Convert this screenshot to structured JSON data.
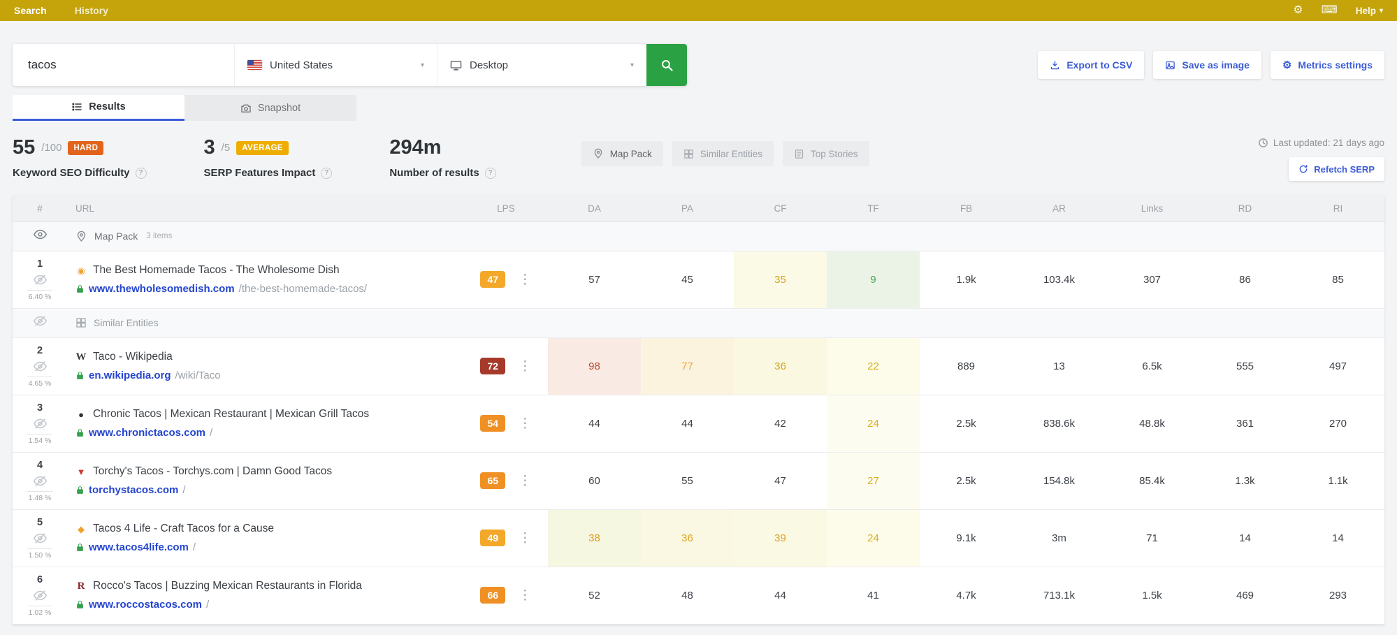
{
  "topbar": {
    "nav": [
      {
        "label": "Search",
        "active": true
      },
      {
        "label": "History",
        "active": false
      }
    ],
    "help_label": "Help"
  },
  "search_bar": {
    "keyword_value": "tacos",
    "location_value": "United States",
    "device_value": "Desktop"
  },
  "header_actions": [
    {
      "label": "Export to CSV",
      "icon": "download-icon"
    },
    {
      "label": "Save as image",
      "icon": "image-icon"
    },
    {
      "label": "Metrics settings",
      "icon": "gear-icon"
    }
  ],
  "tabs": [
    {
      "label": "Results",
      "icon": "list-icon",
      "active": true
    },
    {
      "label": "Snapshot",
      "icon": "camera-icon",
      "active": false
    }
  ],
  "stats": {
    "difficulty": {
      "value": "55",
      "suffix": "/100",
      "badge": "HARD",
      "badge_color": "#e2641b",
      "label": "Keyword SEO Difficulty"
    },
    "serp_impact": {
      "value": "3",
      "suffix": "/5",
      "badge": "AVERAGE",
      "badge_color": "#eead00",
      "label": "SERP Features Impact"
    },
    "results_count": {
      "value": "294m",
      "label": "Number of results"
    }
  },
  "serp_feature_buttons": [
    {
      "label": "Map Pack",
      "icon": "map-pin-icon",
      "muted": false
    },
    {
      "label": "Similar Entities",
      "icon": "grid-icon",
      "muted": true
    },
    {
      "label": "Top Stories",
      "icon": "article-icon",
      "muted": true
    }
  ],
  "refresh_info": {
    "last_updated": "Last updated: 21 days ago",
    "refetch_label": "Refetch SERP"
  },
  "table": {
    "columns": [
      "#",
      "URL",
      "LPS",
      "DA",
      "PA",
      "CF",
      "TF",
      "FB",
      "AR",
      "Links",
      "RD",
      "RI"
    ],
    "rows": [
      {
        "type": "feature",
        "label": "Map Pack",
        "meta": "3 items",
        "icon": "map-pin-icon",
        "visible": true
      },
      {
        "type": "result",
        "rank": "1",
        "ctr": "6.40 %",
        "favicon": {
          "glyph": "◉",
          "color": "#f0a330",
          "serif": false
        },
        "title": "The Best Homemade Tacos - The Wholesome Dish",
        "domain": "www.thewholesomedish.com",
        "path": "/the-best-homemade-tacos/",
        "lps": {
          "v": "47",
          "bg": "#f3a82a"
        },
        "metrics": [
          {
            "v": "57"
          },
          {
            "v": "45"
          },
          {
            "v": "35",
            "fg": "#cfa51d",
            "bg": "#fafae6"
          },
          {
            "v": "9",
            "fg": "#47a352",
            "bg": "#ebf3e7"
          },
          {
            "v": "1.9k"
          },
          {
            "v": "103.4k"
          },
          {
            "v": "307"
          },
          {
            "v": "86"
          },
          {
            "v": "85"
          }
        ]
      },
      {
        "type": "feature",
        "label": "Similar Entities",
        "meta": "",
        "icon": "grid-icon",
        "visible": false
      },
      {
        "type": "result",
        "rank": "2",
        "ctr": "4.65 %",
        "favicon": {
          "glyph": "W",
          "color": "#3a3a3a",
          "serif": true
        },
        "title": "Taco - Wikipedia",
        "domain": "en.wikipedia.org",
        "path": "/wiki/Taco",
        "lps": {
          "v": "72",
          "bg": "#a63a2a"
        },
        "metrics": [
          {
            "v": "98",
            "fg": "#bb4a2c",
            "bg": "#f9eae3"
          },
          {
            "v": "77",
            "fg": "#eca33d",
            "bg": "#fcf3df"
          },
          {
            "v": "36",
            "fg": "#cfa51d",
            "bg": "#fbf8e1"
          },
          {
            "v": "22",
            "fg": "#d4af1e",
            "bg": "#fdfbea"
          },
          {
            "v": "889"
          },
          {
            "v": "13"
          },
          {
            "v": "6.5k"
          },
          {
            "v": "555"
          },
          {
            "v": "497"
          }
        ]
      },
      {
        "type": "result",
        "rank": "3",
        "ctr": "1.54 %",
        "favicon": {
          "glyph": "●",
          "color": "#2f2f2f",
          "serif": false
        },
        "title": "Chronic Tacos | Mexican Restaurant | Mexican Grill Tacos",
        "domain": "www.chronictacos.com",
        "path": "/",
        "lps": {
          "v": "54",
          "bg": "#ef9025"
        },
        "metrics": [
          {
            "v": "44"
          },
          {
            "v": "44"
          },
          {
            "v": "42"
          },
          {
            "v": "24",
            "fg": "#d4af1e",
            "bg": "#fdfcf0"
          },
          {
            "v": "2.5k"
          },
          {
            "v": "838.6k"
          },
          {
            "v": "48.8k"
          },
          {
            "v": "361"
          },
          {
            "v": "270"
          }
        ]
      },
      {
        "type": "result",
        "rank": "4",
        "ctr": "1.48 %",
        "favicon": {
          "glyph": "▼",
          "color": "#cd3b2e",
          "serif": false
        },
        "title": "Torchy's Tacos - Torchys.com | Damn Good Tacos",
        "domain": "torchystacos.com",
        "path": "/",
        "lps": {
          "v": "65",
          "bg": "#ef9025"
        },
        "metrics": [
          {
            "v": "60"
          },
          {
            "v": "55"
          },
          {
            "v": "47"
          },
          {
            "v": "27",
            "fg": "#d4af1e",
            "bg": "#fdfcf0"
          },
          {
            "v": "2.5k"
          },
          {
            "v": "154.8k"
          },
          {
            "v": "85.4k"
          },
          {
            "v": "1.3k"
          },
          {
            "v": "1.1k"
          }
        ]
      },
      {
        "type": "result",
        "rank": "5",
        "ctr": "1.50 %",
        "favicon": {
          "glyph": "◆",
          "color": "#f2a12c",
          "serif": false
        },
        "title": "Tacos 4 Life - Craft Tacos for a Cause",
        "domain": "www.tacos4life.com",
        "path": "/",
        "lps": {
          "v": "49",
          "bg": "#f3a82a"
        },
        "metrics": [
          {
            "v": "38",
            "fg": "#dd9b22",
            "bg": "#f5f7e0"
          },
          {
            "v": "36",
            "fg": "#e0a41e",
            "bg": "#faf8e2"
          },
          {
            "v": "39",
            "fg": "#dba226",
            "bg": "#faf9e3"
          },
          {
            "v": "24",
            "fg": "#d4af1e",
            "bg": "#fdfbea"
          },
          {
            "v": "9.1k"
          },
          {
            "v": "3m"
          },
          {
            "v": "71"
          },
          {
            "v": "14"
          },
          {
            "v": "14"
          }
        ]
      },
      {
        "type": "result",
        "rank": "6",
        "ctr": "1.02 %",
        "favicon": {
          "glyph": "R",
          "color": "#8a2424",
          "serif": true
        },
        "title": "Rocco's Tacos | Buzzing Mexican Restaurants in Florida",
        "domain": "www.roccostacos.com",
        "path": "/",
        "lps": {
          "v": "66",
          "bg": "#ef9025"
        },
        "metrics": [
          {
            "v": "52"
          },
          {
            "v": "48"
          },
          {
            "v": "44"
          },
          {
            "v": "41"
          },
          {
            "v": "4.7k"
          },
          {
            "v": "713.1k"
          },
          {
            "v": "1.5k"
          },
          {
            "v": "469"
          },
          {
            "v": "293"
          }
        ]
      }
    ]
  }
}
